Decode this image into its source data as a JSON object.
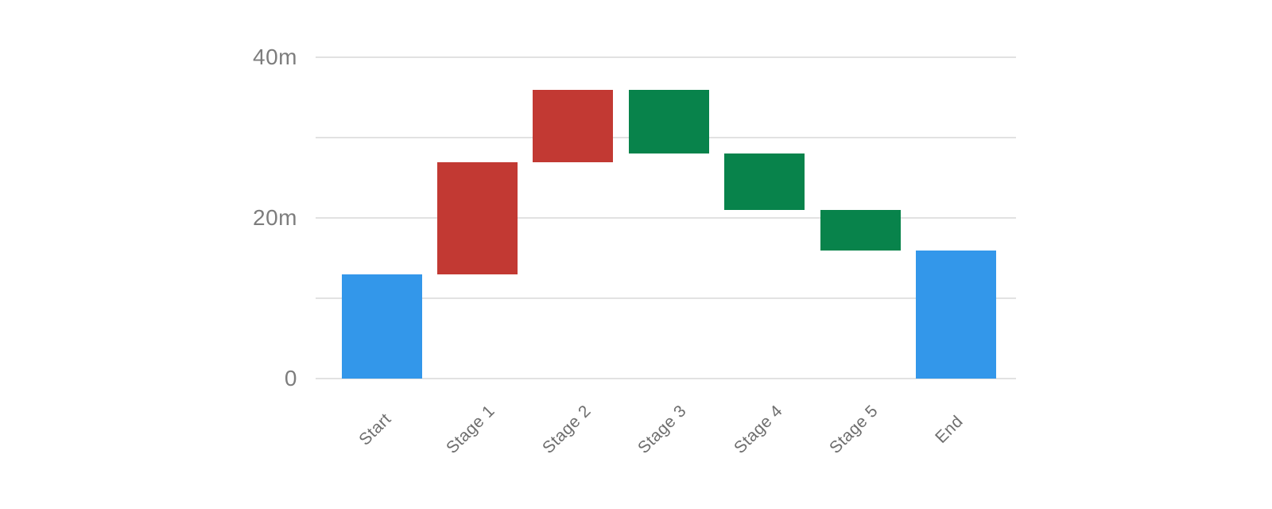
{
  "chart_data": {
    "type": "bar",
    "subtype": "waterfall",
    "title": "",
    "grid": "horizontal",
    "legend_position": "none",
    "categories": [
      "Start",
      "Stage 1",
      "Stage 2",
      "Stage 3",
      "Stage 4",
      "Stage 5",
      "End"
    ],
    "unit_suffix": "m",
    "bars": [
      {
        "label": "Start",
        "kind": "total",
        "from": 0,
        "to": 13,
        "delta": 13
      },
      {
        "label": "Stage 1",
        "kind": "increase",
        "from": 13,
        "to": 27,
        "delta": 14
      },
      {
        "label": "Stage 2",
        "kind": "increase",
        "from": 27,
        "to": 36,
        "delta": 9
      },
      {
        "label": "Stage 3",
        "kind": "decrease",
        "from": 36,
        "to": 28,
        "delta": -8
      },
      {
        "label": "Stage 4",
        "kind": "decrease",
        "from": 28,
        "to": 21,
        "delta": -7
      },
      {
        "label": "Stage 5",
        "kind": "decrease",
        "from": 21,
        "to": 16,
        "delta": -5
      },
      {
        "label": "End",
        "kind": "total",
        "from": 0,
        "to": 16,
        "delta": 16
      }
    ],
    "y_axis": {
      "min": 0,
      "max": 40,
      "gridline_step": 10,
      "ticks": [
        {
          "value": 0,
          "label": "0"
        },
        {
          "value": 20,
          "label": "20m"
        },
        {
          "value": 40,
          "label": "40m"
        }
      ]
    },
    "colors": {
      "total": "#3397EA",
      "increase": "#C23933",
      "decrease": "#08834B",
      "gridline": "#E2E2E2",
      "tick_label": "#7D7D7D",
      "category_label": "#6E6E6E",
      "background": "#FFFFFF"
    }
  }
}
